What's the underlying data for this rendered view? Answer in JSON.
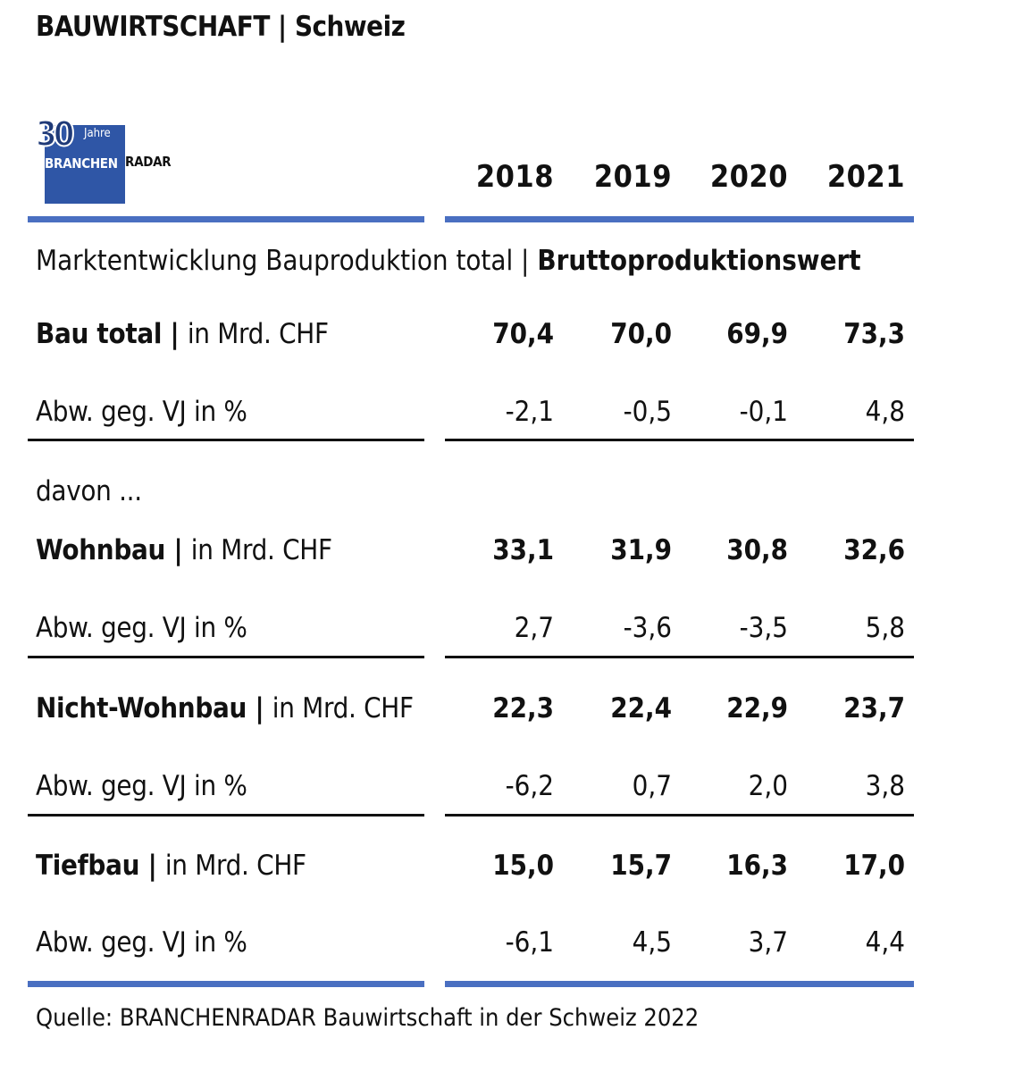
{
  "header": {
    "title_main": "BAUWIRTSCHAFT",
    "title_sep": " | ",
    "title_region": "Schweiz"
  },
  "logo": {
    "number": "30",
    "jahre": "Jahre",
    "brand_left": "BRANCHEN",
    "brand_right": "RADAR"
  },
  "colors": {
    "accent_rule": "#4a6fc1",
    "logo_bg": "#2f56a6",
    "text": "#111111"
  },
  "subtitle": {
    "light": "Marktentwicklung Bauproduktion total | ",
    "bold": "Bruttoproduktionswert"
  },
  "davon": "davon ...",
  "chart_data": {
    "type": "table",
    "columns": [
      "2018",
      "2019",
      "2020",
      "2021"
    ],
    "rows": [
      {
        "label_bold": "Bau total | ",
        "label_rest": "in Mrd. CHF",
        "values": [
          "70,4",
          "70,0",
          "69,9",
          "73,3"
        ],
        "bold": true
      },
      {
        "label_bold": "",
        "label_rest": "Abw. geg. VJ in %",
        "values": [
          "-2,1",
          "-0,5",
          "-0,1",
          "4,8"
        ],
        "bold": false
      },
      {
        "label_bold": "Wohnbau | ",
        "label_rest": "in Mrd. CHF",
        "values": [
          "33,1",
          "31,9",
          "30,8",
          "32,6"
        ],
        "bold": true
      },
      {
        "label_bold": "",
        "label_rest": "Abw. geg. VJ in %",
        "values": [
          "2,7",
          "-3,6",
          "-3,5",
          "5,8"
        ],
        "bold": false
      },
      {
        "label_bold": "Nicht-Wohnbau | ",
        "label_rest": "in Mrd. CHF",
        "values": [
          "22,3",
          "22,4",
          "22,9",
          "23,7"
        ],
        "bold": true
      },
      {
        "label_bold": "",
        "label_rest": "Abw. geg. VJ in %",
        "values": [
          "-6,2",
          "0,7",
          "2,0",
          "3,8"
        ],
        "bold": false
      },
      {
        "label_bold": "Tiefbau | ",
        "label_rest": "in Mrd. CHF",
        "values": [
          "15,0",
          "15,7",
          "16,3",
          "17,0"
        ],
        "bold": true
      },
      {
        "label_bold": "",
        "label_rest": "Abw. geg. VJ in %",
        "values": [
          "-6,1",
          "4,5",
          "3,7",
          "4,4"
        ],
        "bold": false
      }
    ]
  },
  "source": "Quelle: BRANCHENRADAR Bauwirtschaft in der Schweiz 2022"
}
